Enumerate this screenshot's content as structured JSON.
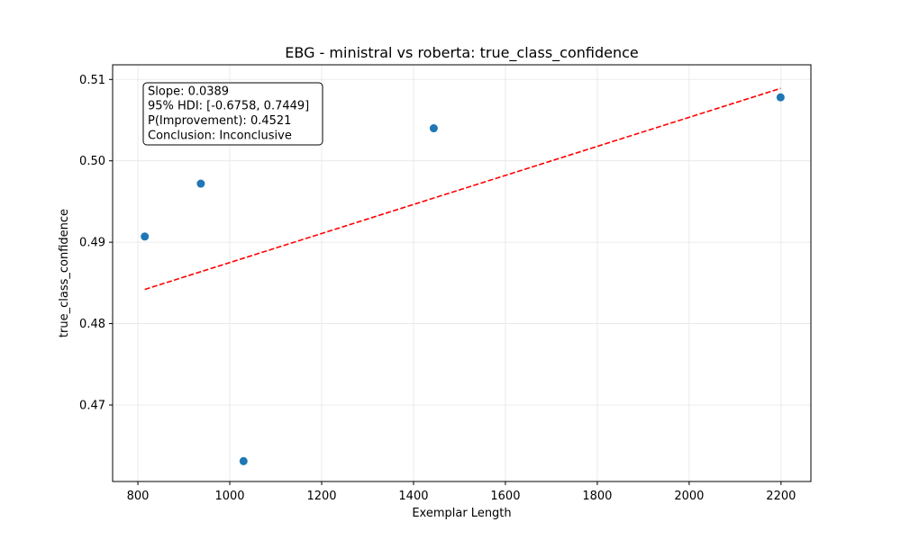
{
  "chart_data": {
    "type": "scatter",
    "title": "EBG - ministral vs roberta: true_class_confidence",
    "xlabel": "Exemplar Length",
    "ylabel": "true_class_confidence",
    "xlim": [
      745,
      2265
    ],
    "ylim": [
      0.4606,
      0.5118
    ],
    "x_ticks": [
      800,
      1000,
      1200,
      1400,
      1600,
      1800,
      2000,
      2200
    ],
    "x_tick_labels": [
      "800",
      "1000",
      "1200",
      "1400",
      "1600",
      "1800",
      "2000",
      "2200"
    ],
    "y_ticks": [
      0.47,
      0.48,
      0.49,
      0.5,
      0.51
    ],
    "y_tick_labels": [
      "0.47",
      "0.48",
      "0.49",
      "0.50",
      "0.51"
    ],
    "grid": true,
    "points": [
      {
        "x": 815,
        "y": 0.4907
      },
      {
        "x": 937,
        "y": 0.4972
      },
      {
        "x": 1030,
        "y": 0.4631
      },
      {
        "x": 1444,
        "y": 0.504
      },
      {
        "x": 2199,
        "y": 0.5078
      }
    ],
    "fit_line": {
      "x": [
        815,
        2199
      ],
      "y": [
        0.4842,
        0.5089
      ],
      "style": "dashed"
    },
    "annotation": [
      "Slope: 0.0389",
      "95% HDI: [-0.6758, 0.7449]",
      "P(Improvement): 0.4521",
      "Conclusion: Inconclusive"
    ],
    "colors": {
      "points": "#1f77b4",
      "fit_line": "#ff0000",
      "grid": "#e6e6e6"
    }
  }
}
